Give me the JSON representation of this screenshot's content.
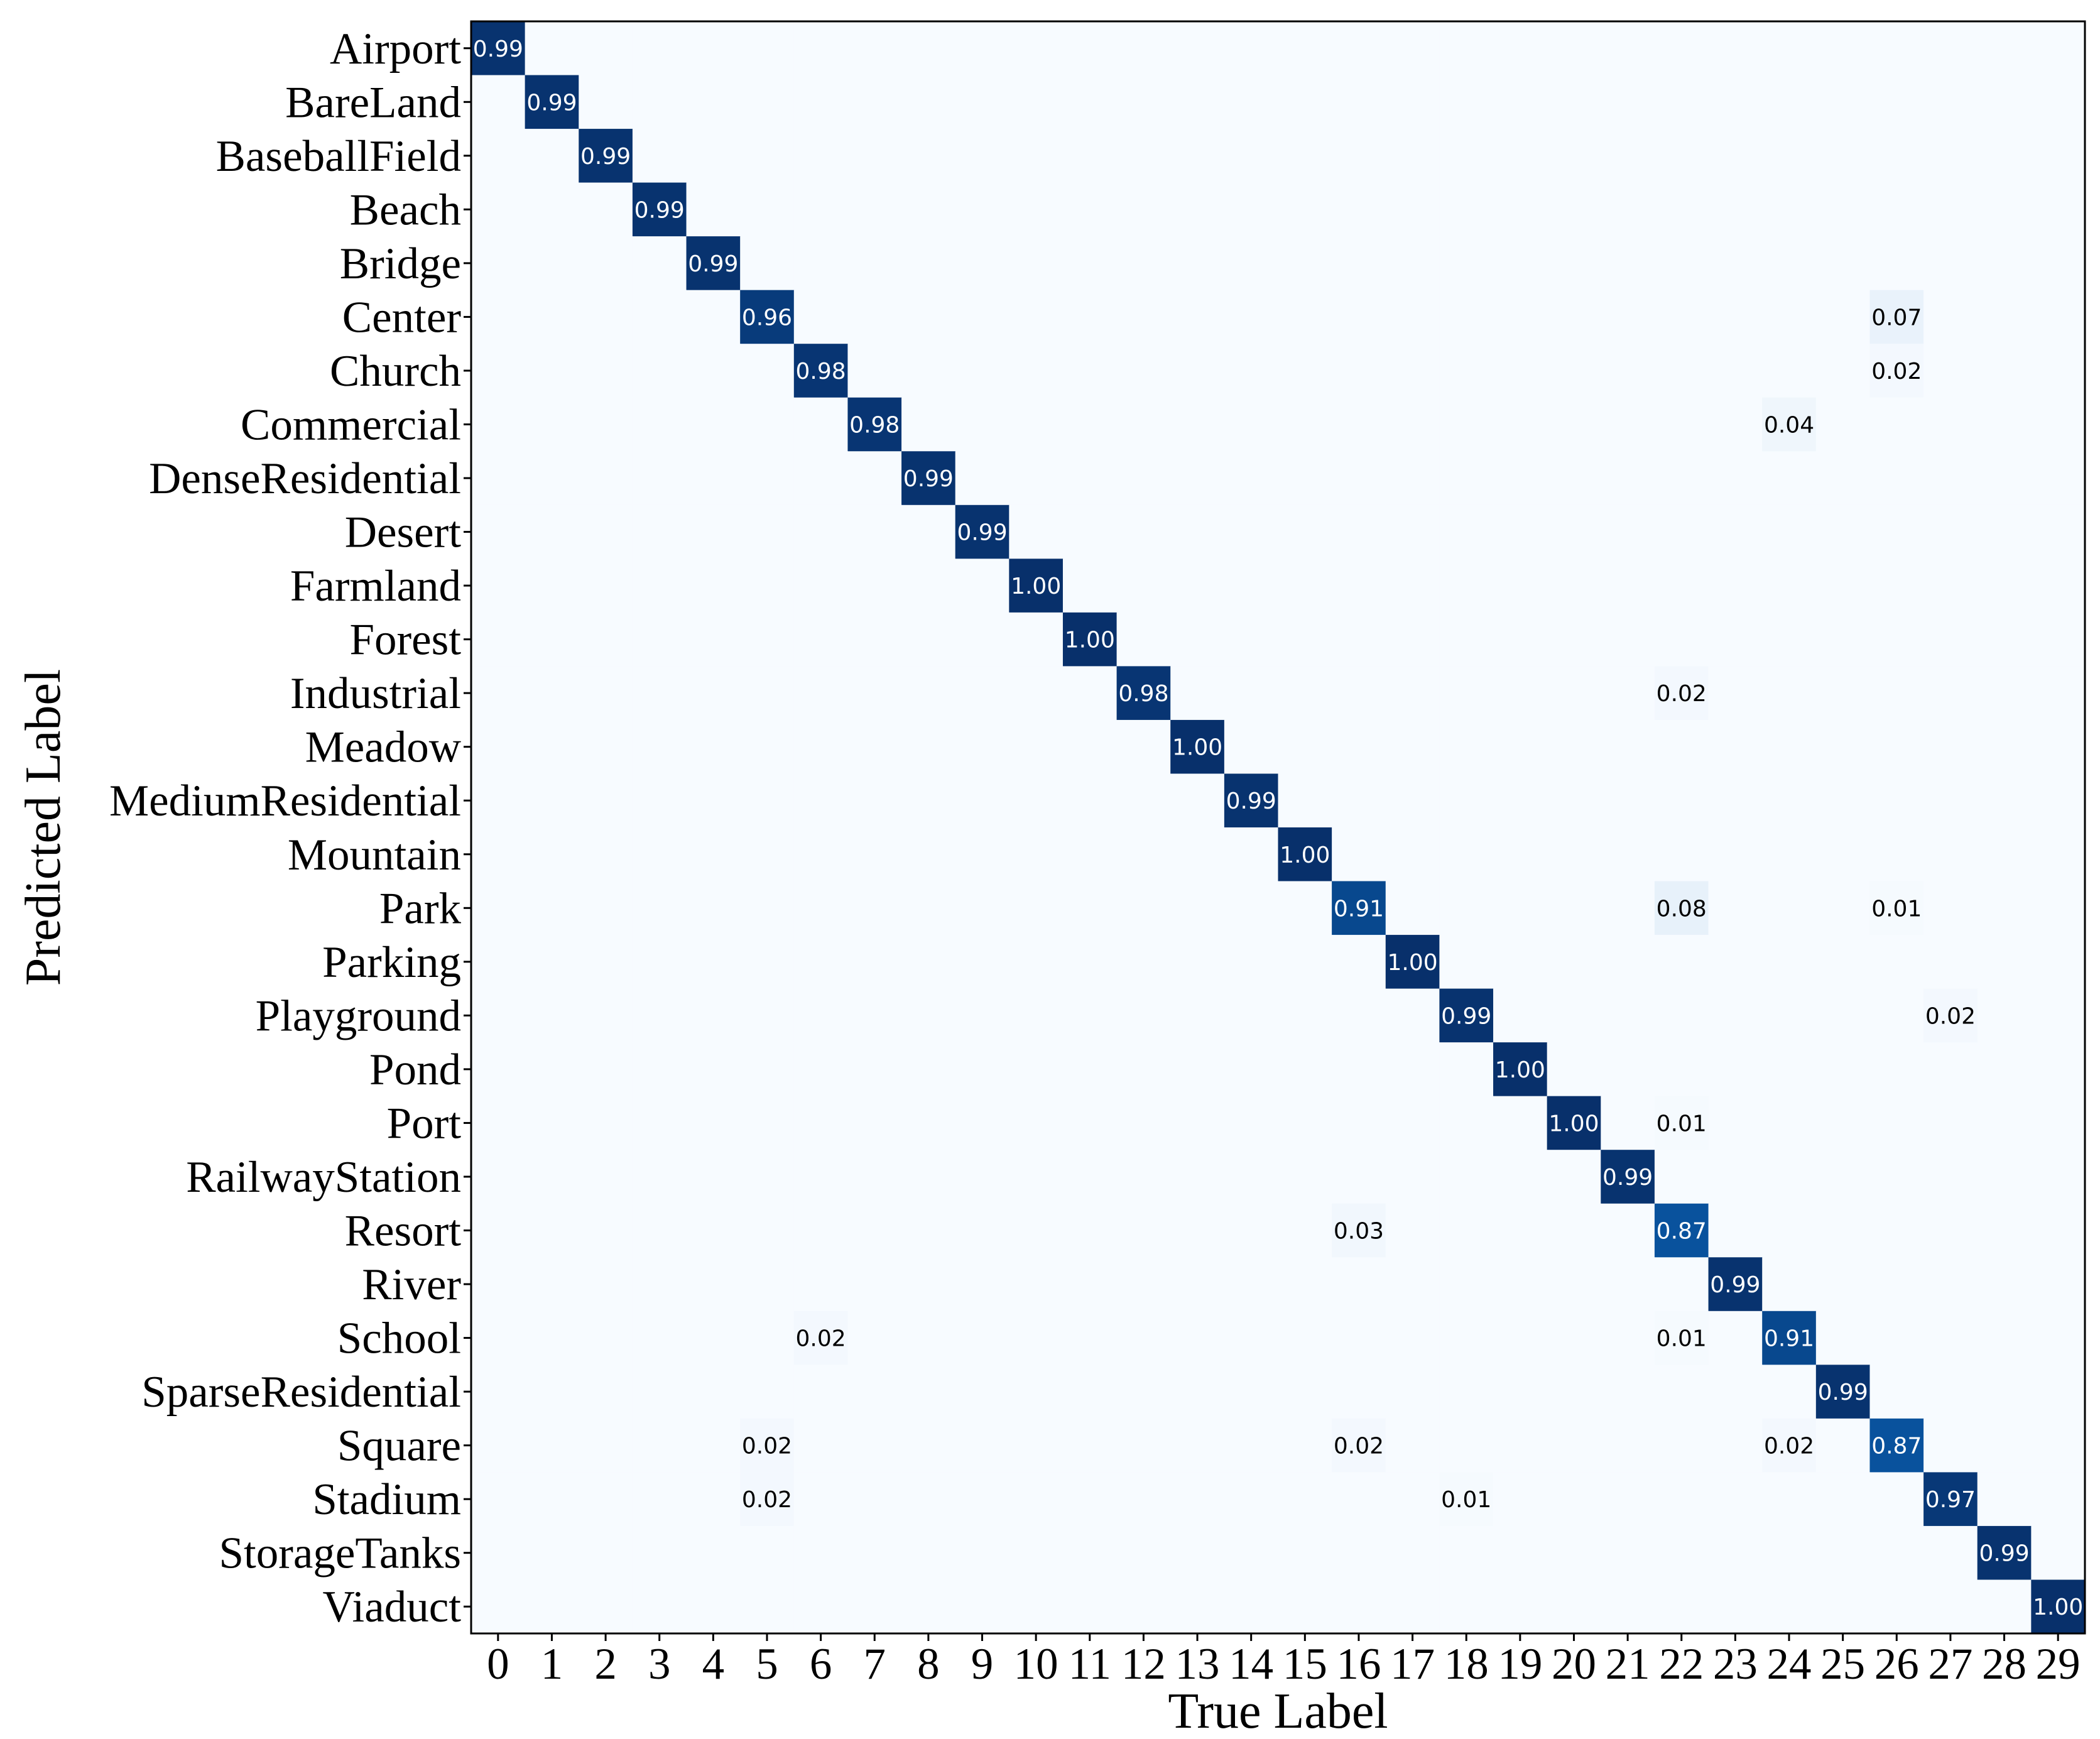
{
  "chart_data": {
    "type": "heatmap",
    "xlabel": "True Label",
    "ylabel": "Predicted Label",
    "x_categories": [
      "0",
      "1",
      "2",
      "3",
      "4",
      "5",
      "6",
      "7",
      "8",
      "9",
      "10",
      "11",
      "12",
      "13",
      "14",
      "15",
      "16",
      "17",
      "18",
      "19",
      "20",
      "21",
      "22",
      "23",
      "24",
      "25",
      "26",
      "27",
      "28",
      "29"
    ],
    "y_categories": [
      "Airport",
      "BareLand",
      "BaseballField",
      "Beach",
      "Bridge",
      "Center",
      "Church",
      "Commercial",
      "DenseResidential",
      "Desert",
      "Farmland",
      "Forest",
      "Industrial",
      "Meadow",
      "MediumResidential",
      "Mountain",
      "Park",
      "Parking",
      "Playground",
      "Pond",
      "Port",
      "RailwayStation",
      "Resort",
      "River",
      "School",
      "SparseResidential",
      "Square",
      "Stadium",
      "StorageTanks",
      "Viaduct"
    ],
    "colormap": "Blues",
    "value_range": [
      0,
      1
    ],
    "cells": [
      {
        "row": 0,
        "col": 0,
        "value": 0.99,
        "label": "0.99"
      },
      {
        "row": 1,
        "col": 1,
        "value": 0.99,
        "label": "0.99"
      },
      {
        "row": 2,
        "col": 2,
        "value": 0.99,
        "label": "0.99"
      },
      {
        "row": 3,
        "col": 3,
        "value": 0.99,
        "label": "0.99"
      },
      {
        "row": 4,
        "col": 4,
        "value": 0.99,
        "label": "0.99"
      },
      {
        "row": 5,
        "col": 5,
        "value": 0.96,
        "label": "0.96"
      },
      {
        "row": 5,
        "col": 26,
        "value": 0.07,
        "label": "0.07"
      },
      {
        "row": 6,
        "col": 6,
        "value": 0.98,
        "label": "0.98"
      },
      {
        "row": 6,
        "col": 26,
        "value": 0.02,
        "label": "0.02"
      },
      {
        "row": 7,
        "col": 7,
        "value": 0.98,
        "label": "0.98"
      },
      {
        "row": 7,
        "col": 24,
        "value": 0.04,
        "label": "0.04"
      },
      {
        "row": 8,
        "col": 8,
        "value": 0.99,
        "label": "0.99"
      },
      {
        "row": 9,
        "col": 9,
        "value": 0.99,
        "label": "0.99"
      },
      {
        "row": 10,
        "col": 10,
        "value": 1.0,
        "label": "1.00"
      },
      {
        "row": 11,
        "col": 11,
        "value": 1.0,
        "label": "1.00"
      },
      {
        "row": 12,
        "col": 12,
        "value": 0.98,
        "label": "0.98"
      },
      {
        "row": 12,
        "col": 22,
        "value": 0.02,
        "label": "0.02"
      },
      {
        "row": 13,
        "col": 13,
        "value": 1.0,
        "label": "1.00"
      },
      {
        "row": 14,
        "col": 14,
        "value": 0.99,
        "label": "0.99"
      },
      {
        "row": 15,
        "col": 15,
        "value": 1.0,
        "label": "1.00"
      },
      {
        "row": 16,
        "col": 16,
        "value": 0.91,
        "label": "0.91"
      },
      {
        "row": 16,
        "col": 22,
        "value": 0.08,
        "label": "0.08"
      },
      {
        "row": 16,
        "col": 26,
        "value": 0.01,
        "label": "0.01"
      },
      {
        "row": 17,
        "col": 17,
        "value": 1.0,
        "label": "1.00"
      },
      {
        "row": 18,
        "col": 18,
        "value": 0.99,
        "label": "0.99"
      },
      {
        "row": 18,
        "col": 27,
        "value": 0.02,
        "label": "0.02"
      },
      {
        "row": 19,
        "col": 19,
        "value": 1.0,
        "label": "1.00"
      },
      {
        "row": 20,
        "col": 20,
        "value": 1.0,
        "label": "1.00"
      },
      {
        "row": 20,
        "col": 22,
        "value": 0.01,
        "label": "0.01"
      },
      {
        "row": 21,
        "col": 21,
        "value": 0.99,
        "label": "0.99"
      },
      {
        "row": 22,
        "col": 16,
        "value": 0.03,
        "label": "0.03"
      },
      {
        "row": 22,
        "col": 22,
        "value": 0.87,
        "label": "0.87"
      },
      {
        "row": 23,
        "col": 23,
        "value": 0.99,
        "label": "0.99"
      },
      {
        "row": 24,
        "col": 6,
        "value": 0.02,
        "label": "0.02"
      },
      {
        "row": 24,
        "col": 22,
        "value": 0.01,
        "label": "0.01"
      },
      {
        "row": 24,
        "col": 24,
        "value": 0.91,
        "label": "0.91"
      },
      {
        "row": 25,
        "col": 25,
        "value": 0.99,
        "label": "0.99"
      },
      {
        "row": 26,
        "col": 5,
        "value": 0.02,
        "label": "0.02"
      },
      {
        "row": 26,
        "col": 16,
        "value": 0.02,
        "label": "0.02"
      },
      {
        "row": 26,
        "col": 24,
        "value": 0.02,
        "label": "0.02"
      },
      {
        "row": 26,
        "col": 26,
        "value": 0.87,
        "label": "0.87"
      },
      {
        "row": 27,
        "col": 5,
        "value": 0.02,
        "label": "0.02"
      },
      {
        "row": 27,
        "col": 18,
        "value": 0.01,
        "label": "0.01"
      },
      {
        "row": 27,
        "col": 27,
        "value": 0.97,
        "label": "0.97"
      },
      {
        "row": 28,
        "col": 28,
        "value": 0.99,
        "label": "0.99"
      },
      {
        "row": 29,
        "col": 29,
        "value": 1.0,
        "label": "1.00"
      }
    ]
  }
}
